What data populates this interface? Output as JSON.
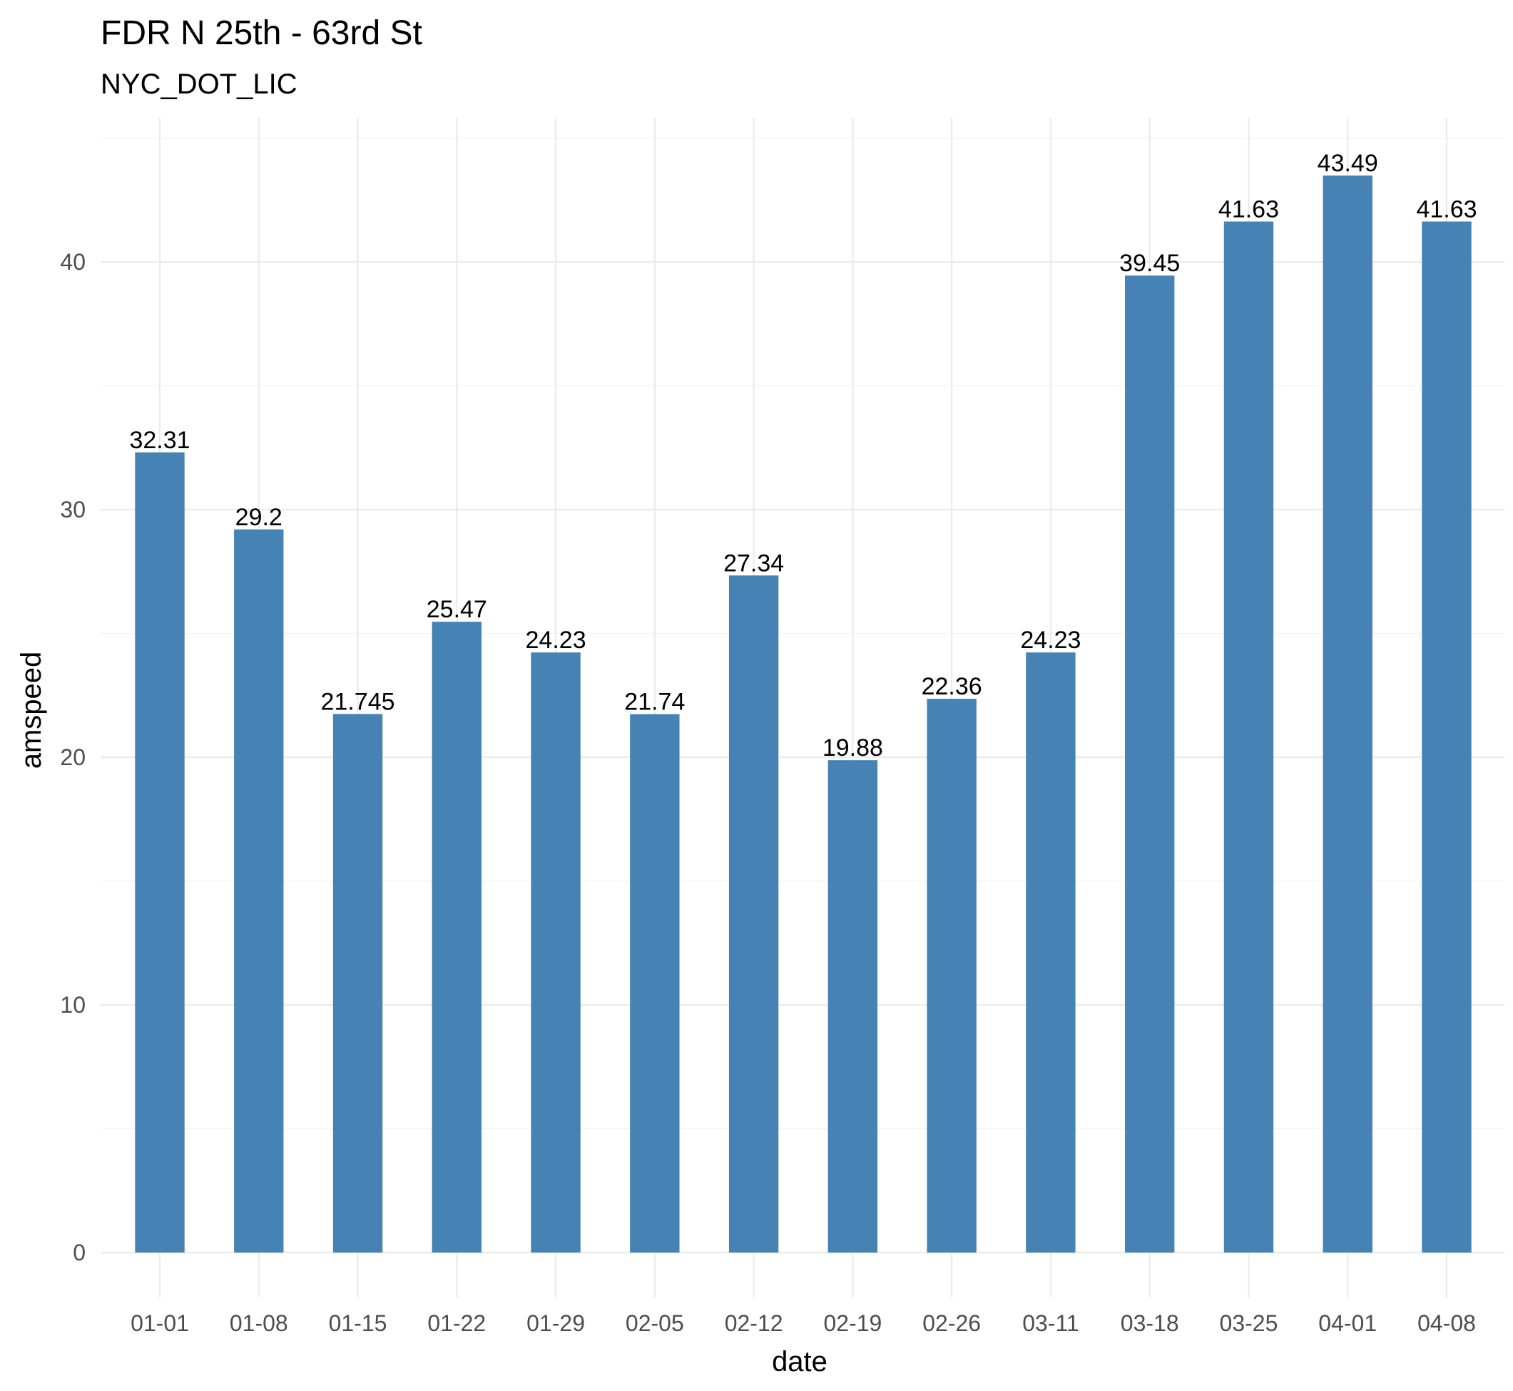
{
  "chart_data": {
    "type": "bar",
    "title": "FDR N 25th - 63rd St",
    "subtitle": "NYC_DOT_LIC",
    "xlabel": "date",
    "ylabel": "amspeed",
    "categories": [
      "01-01",
      "01-08",
      "01-15",
      "01-22",
      "01-29",
      "02-05",
      "02-12",
      "02-19",
      "02-26",
      "03-11",
      "03-18",
      "03-25",
      "04-01",
      "04-08"
    ],
    "values": [
      32.31,
      29.2,
      21.745,
      25.47,
      24.23,
      21.74,
      27.34,
      19.88,
      22.36,
      24.23,
      39.45,
      41.63,
      43.49,
      41.63
    ],
    "value_labels": [
      "32.31",
      "29.2",
      "21.745",
      "25.47",
      "24.23",
      "21.74",
      "27.34",
      "19.88",
      "22.36",
      "24.23",
      "39.45",
      "41.63",
      "43.49",
      "41.63"
    ],
    "yticks": [
      0,
      10,
      20,
      30,
      40
    ],
    "ylim": [
      0,
      45.5
    ],
    "grid": true,
    "bar_color": "#4682B4"
  }
}
